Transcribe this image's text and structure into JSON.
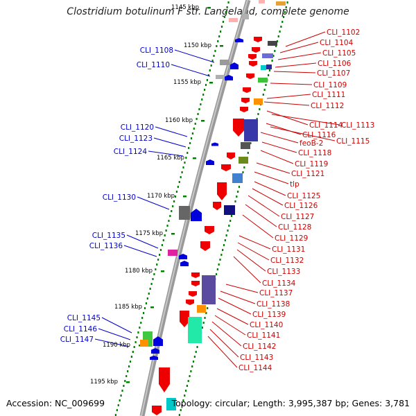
{
  "title": "Clostridium botulinum F str. Langeland, complete genome",
  "accession": "Accession: NC_009699",
  "topology": "Topology: circular; Length: 3,995,387 bp; Genes: 3,781",
  "scale_labels": [
    "1145 kbp",
    "1150 kbp",
    "1155 kbp",
    "1160 kbp",
    "1165 kbp",
    "1170 kbp",
    "1175 kbp",
    "1180 kbp",
    "1185 kbp",
    "1190 kbp",
    "1195 kbp"
  ],
  "left_genes": [
    "CLI_1108",
    "CLI_1110",
    "CLI_1120",
    "CLI_1123",
    "CLI_1124",
    "CLI_1130",
    "CLI_1135",
    "CLI_1136",
    "CLI_1145",
    "CLI_1146",
    "CLI_1147"
  ],
  "right_genes": [
    "CLI_1102",
    "CLI_1104",
    "CLI_1105",
    "CLI_1106",
    "CLI_1107",
    "CLI_1109",
    "CLI_1111",
    "CLI_1112",
    "CLI_1114",
    "CLI_1113",
    "CLI_1116",
    "CLI_1115",
    "feoB-2",
    "CLI_1118",
    "CLI_1119",
    "CLI_1121",
    "tlp",
    "CLI_1125",
    "CLI_1126",
    "CLI_1127",
    "CLI_1128",
    "CLI_1129",
    "CLI_1131",
    "CLI_1132",
    "CLI_1133",
    "CLI_1134",
    "CLI_1137",
    "CLI_1138",
    "CLI_1139",
    "CLI_1140",
    "CLI_1141",
    "CLI_1142",
    "CLI_1143",
    "CLI_1144"
  ],
  "colors": {
    "forward_label": "#cc0000",
    "reverse_label": "#0000cc",
    "scale_tick": "#008000",
    "backbone": "#777777"
  }
}
